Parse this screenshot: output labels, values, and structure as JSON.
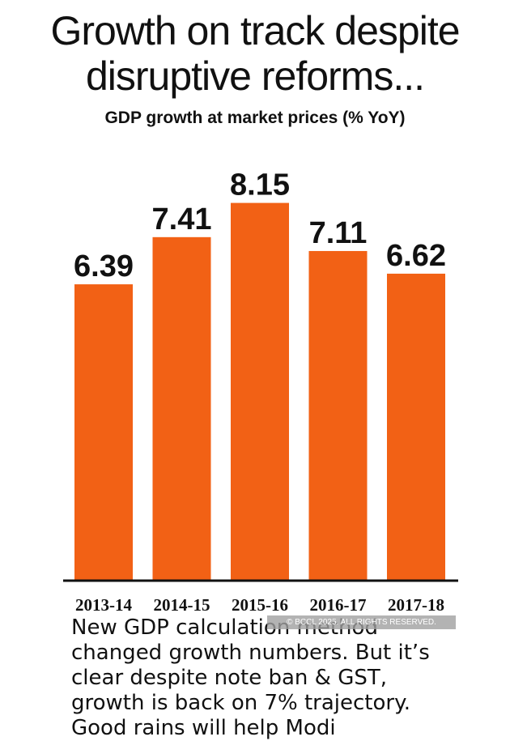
{
  "title_line1": "Growth on track despite",
  "title_line2": "disruptive reforms...",
  "subtitle": "GDP growth at market prices (% YoY)",
  "caption": "New GDP calculation method changed growth numbers. But it’s clear despite note ban & GST, growth is back on 7% trajectory. Good rains will help Modi",
  "watermark": "© BCCL 2025. ALL RIGHTS RESERVED.",
  "colors": {
    "bar": "#f26115",
    "axis": "#111111"
  },
  "chart_data": {
    "type": "bar",
    "categories": [
      "2013-14",
      "2014-15",
      "2015-16",
      "2016-17",
      "2017-18"
    ],
    "values": [
      6.39,
      7.41,
      8.15,
      7.11,
      6.62
    ],
    "data_labels": [
      "6.39",
      "7.41",
      "8.15",
      "7.11",
      "6.62"
    ],
    "title": "GDP growth at market prices (% YoY)",
    "xlabel": "",
    "ylabel": "",
    "ylim": [
      0,
      8.3
    ],
    "grid": false,
    "legend": "none"
  }
}
